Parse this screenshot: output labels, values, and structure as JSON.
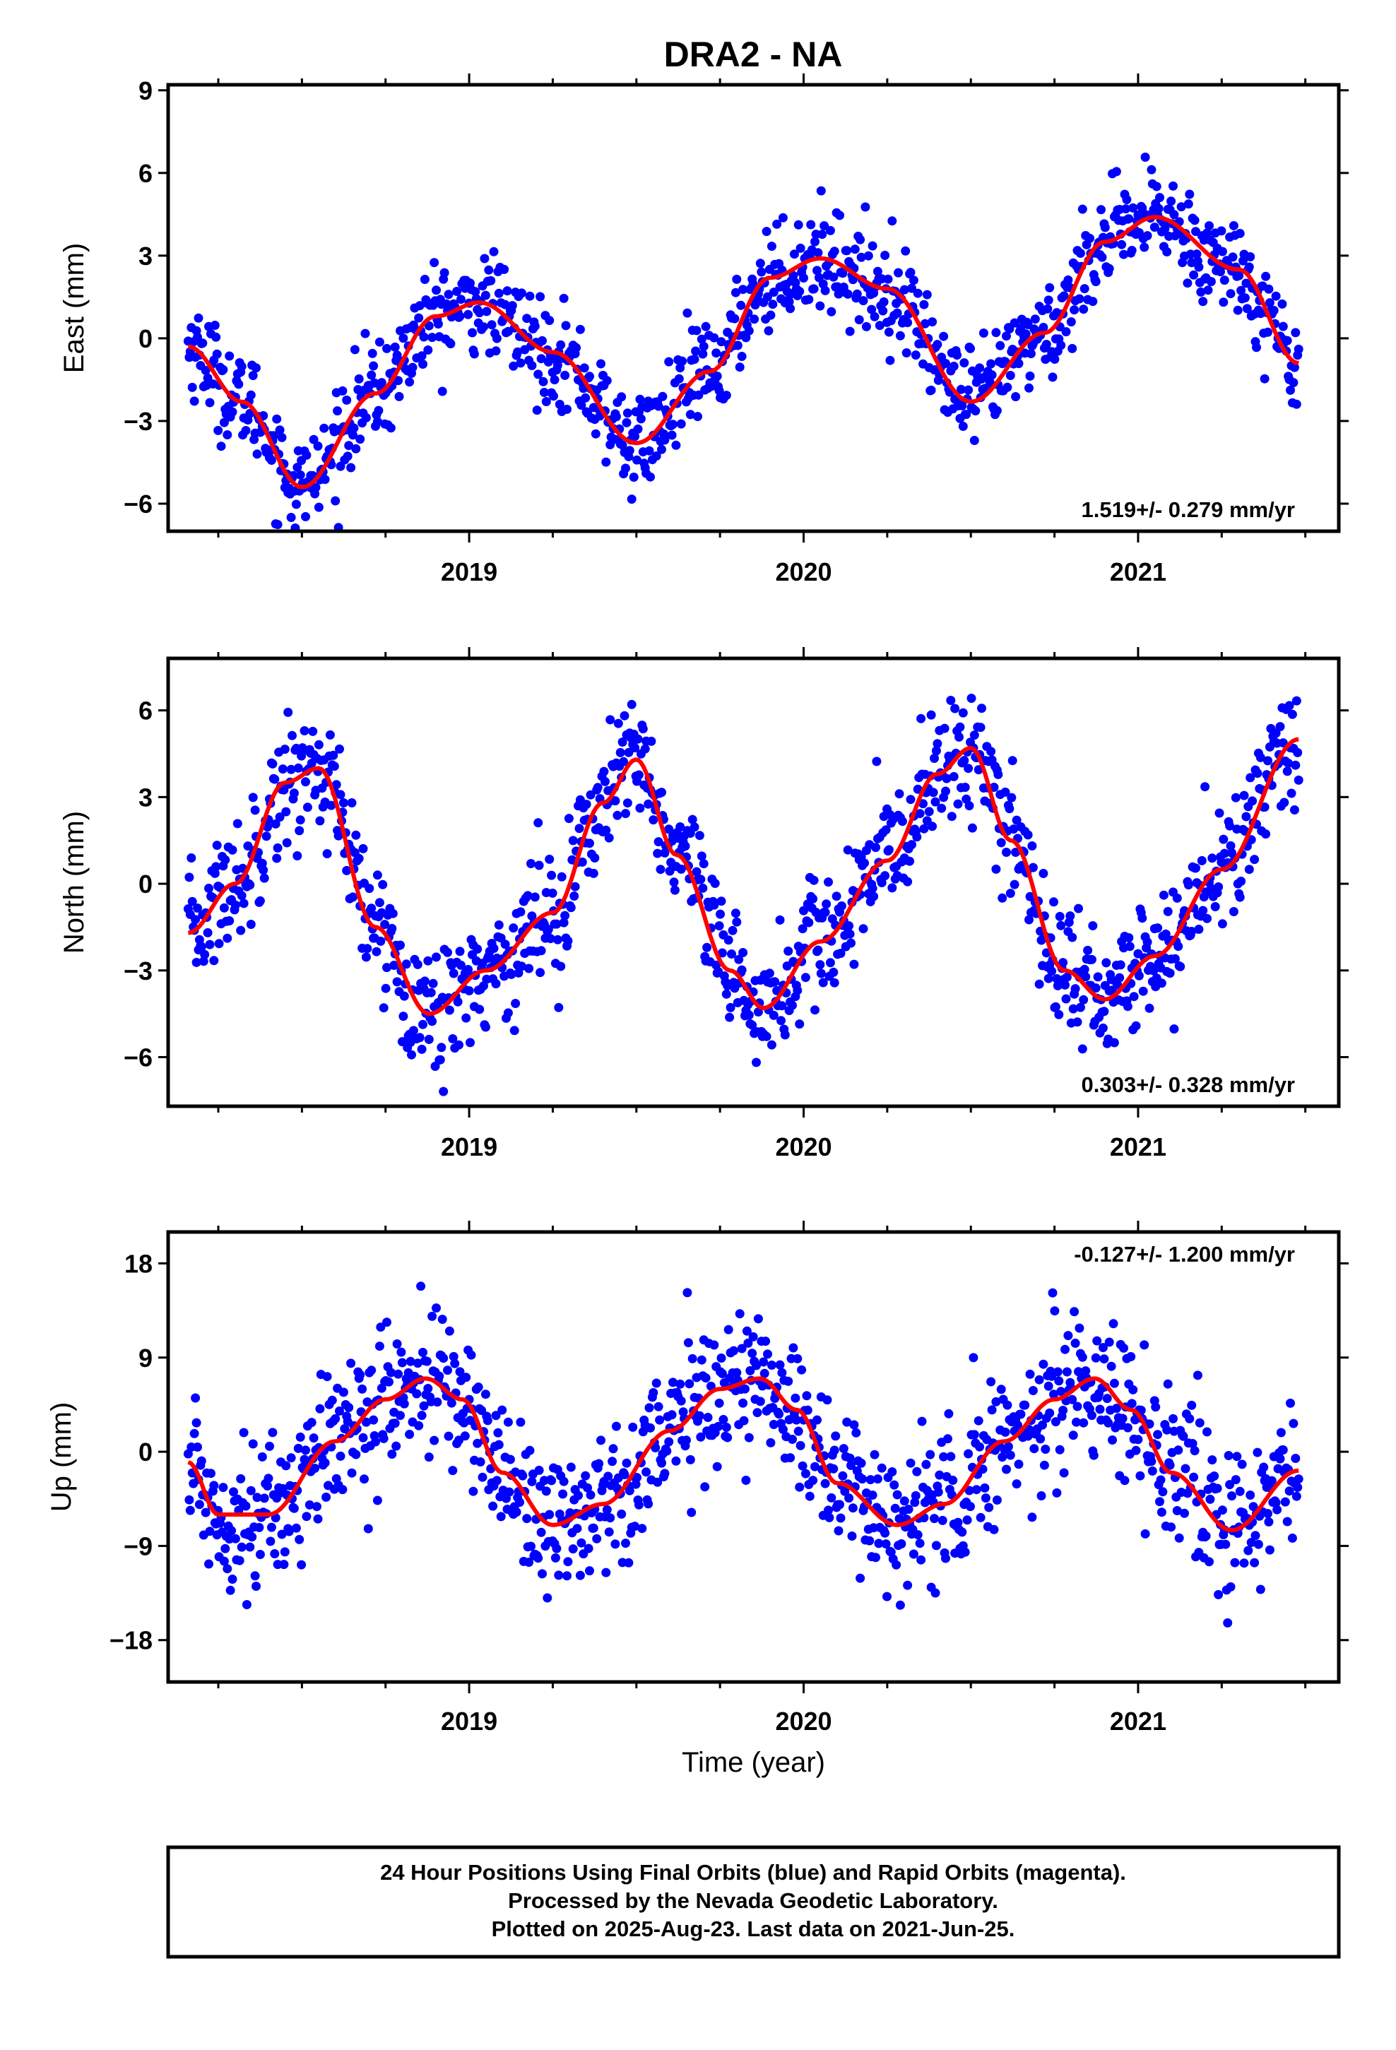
{
  "title": "DRA2 - NA",
  "caption": {
    "lines": [
      "24 Hour Positions Using Final Orbits (blue) and Rapid Orbits (magenta).",
      "Processed by the Nevada Geodetic Laboratory.",
      "Plotted on 2025-Aug-23. Last data on 2021-Jun-25."
    ]
  },
  "colors": {
    "points": "#0000ff",
    "fit": "#ff0000",
    "frame": "#000000"
  },
  "chart_data": [
    {
      "type": "scatter",
      "ylabel": "East (mm)",
      "xlabel": "",
      "xlim": [
        2018.1,
        2021.6
      ],
      "ylim": [
        -7.0,
        9.2
      ],
      "x_ticks": [
        2019,
        2020,
        2021
      ],
      "y_ticks": [
        -6,
        -3,
        0,
        3,
        6,
        9
      ],
      "y_tick_labels": [
        "−6",
        "−3",
        "0",
        "3",
        "6",
        "9"
      ],
      "rate_label": "1.519+/- 0.279 mm/yr",
      "rate_position": "bottom-right",
      "scatter_sd": 0.9,
      "fit": {
        "x": [
          2018.16,
          2018.32,
          2018.5,
          2018.72,
          2018.9,
          2019.03,
          2019.25,
          2019.5,
          2019.72,
          2019.9,
          2020.05,
          2020.25,
          2020.5,
          2020.72,
          2020.9,
          2021.05,
          2021.3,
          2021.48
        ],
        "y": [
          -0.3,
          -2.3,
          -5.4,
          -2.0,
          0.8,
          1.3,
          -0.5,
          -3.8,
          -1.2,
          2.2,
          2.9,
          1.8,
          -2.3,
          0.2,
          3.5,
          4.4,
          2.5,
          -0.9
        ]
      }
    },
    {
      "type": "scatter",
      "ylabel": "North (mm)",
      "xlabel": "",
      "xlim": [
        2018.1,
        2021.6
      ],
      "ylim": [
        -7.7,
        7.8
      ],
      "x_ticks": [
        2019,
        2020,
        2021
      ],
      "y_ticks": [
        -6,
        -3,
        0,
        3,
        6
      ],
      "y_tick_labels": [
        "−6",
        "−3",
        "0",
        "3",
        "6"
      ],
      "rate_label": "0.303+/- 0.328 mm/yr",
      "rate_position": "bottom-right",
      "scatter_sd": 1.1,
      "fit": {
        "x": [
          2018.16,
          2018.3,
          2018.45,
          2018.55,
          2018.72,
          2018.88,
          2019.05,
          2019.25,
          2019.4,
          2019.5,
          2019.62,
          2019.78,
          2019.88,
          2020.05,
          2020.25,
          2020.4,
          2020.5,
          2020.62,
          2020.78,
          2020.9,
          2021.05,
          2021.25,
          2021.48
        ],
        "y": [
          -1.7,
          0.0,
          3.5,
          4.0,
          -1.5,
          -4.5,
          -3.0,
          -1.0,
          2.8,
          4.3,
          1.0,
          -3.0,
          -4.3,
          -2.0,
          0.8,
          3.8,
          4.7,
          1.5,
          -3.0,
          -4.0,
          -2.5,
          0.5,
          5.0
        ]
      }
    },
    {
      "type": "scatter",
      "ylabel": "Up (mm)",
      "xlabel": "Time (year)",
      "xlim": [
        2018.1,
        2021.6
      ],
      "ylim": [
        -22,
        21
      ],
      "x_ticks": [
        2019,
        2020,
        2021
      ],
      "y_ticks": [
        -18,
        -9,
        0,
        9,
        18
      ],
      "y_tick_labels": [
        "−18",
        "−9",
        "0",
        "9",
        "18"
      ],
      "rate_label": "-0.127+/- 1.200 mm/yr",
      "rate_position": "top-right",
      "scatter_sd": 3.5,
      "fit": {
        "x": [
          2018.16,
          2018.25,
          2018.4,
          2018.6,
          2018.75,
          2018.87,
          2018.98,
          2019.1,
          2019.25,
          2019.4,
          2019.6,
          2019.75,
          2019.87,
          2019.98,
          2020.1,
          2020.28,
          2020.42,
          2020.6,
          2020.75,
          2020.87,
          2020.98,
          2021.1,
          2021.28,
          2021.48
        ],
        "y": [
          -1.0,
          -6.0,
          -6.0,
          1.0,
          5.0,
          7.0,
          5.0,
          -2.0,
          -7.0,
          -5.0,
          2.0,
          6.0,
          7.0,
          4.0,
          -3.0,
          -7.0,
          -5.0,
          1.0,
          5.0,
          7.0,
          4.0,
          -2.0,
          -7.5,
          -1.8
        ]
      }
    }
  ]
}
